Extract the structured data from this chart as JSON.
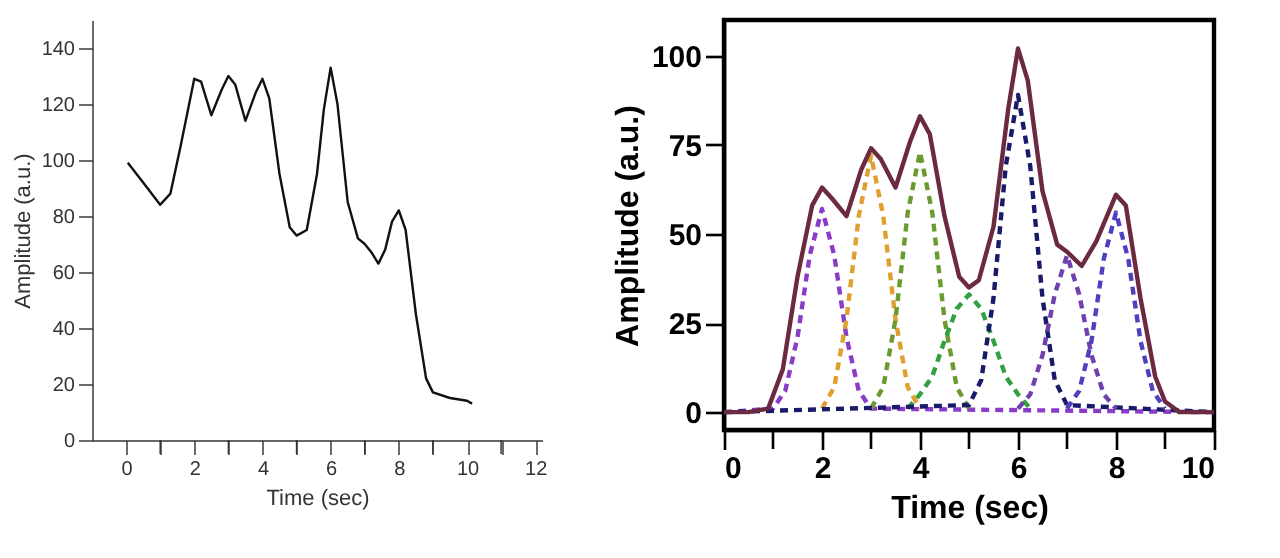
{
  "chart_data": [
    {
      "type": "line",
      "xlabel": "Time (sec)",
      "ylabel": "Amplitude (a.u.)",
      "xlim": [
        -1,
        12.2
      ],
      "ylim": [
        0,
        150
      ],
      "xticks": [
        0,
        {
          "value": 1,
          "label": null
        },
        2,
        {
          "value": 3,
          "label": null
        },
        4,
        {
          "value": 5,
          "label": null
        },
        6,
        {
          "value": 7,
          "label": null
        },
        8,
        {
          "value": 9,
          "label": null
        },
        10,
        {
          "value": 11,
          "label": null
        },
        12
      ],
      "yticks": [
        0,
        20,
        40,
        60,
        80,
        100,
        120,
        140
      ],
      "grid": false,
      "marker": "none",
      "series": [
        {
          "color": "#111111",
          "line_style": "solid",
          "x": [
            0.05,
            0.5,
            1.0,
            1.3,
            1.6,
            2.0,
            2.2,
            2.5,
            2.8,
            3.0,
            3.2,
            3.5,
            3.8,
            4.0,
            4.2,
            4.5,
            4.8,
            5.0,
            5.3,
            5.6,
            5.8,
            6.0,
            6.2,
            6.5,
            6.8,
            7.0,
            7.2,
            7.4,
            7.6,
            7.8,
            8.0,
            8.2,
            8.5,
            8.8,
            9.0,
            9.5,
            10.0,
            10.15
          ],
          "values": [
            99,
            92,
            84,
            88,
            105,
            129,
            128,
            116,
            125,
            130,
            127,
            114,
            124,
            129,
            122,
            95,
            76,
            73,
            75,
            95,
            118,
            133,
            120,
            85,
            72,
            70,
            67,
            63,
            68,
            78,
            82,
            75,
            45,
            22,
            17,
            15,
            14,
            13
          ]
        }
      ]
    },
    {
      "type": "line",
      "xlabel": "Time (sec)",
      "ylabel": "Amplitude (a.u.)",
      "xlim": [
        0,
        10
      ],
      "ylim": [
        -5,
        110
      ],
      "xticks": [
        0,
        {
          "value": 1,
          "label": null
        },
        2,
        {
          "value": 3,
          "label": null
        },
        4,
        {
          "value": 5,
          "label": null
        },
        6,
        {
          "value": 7,
          "label": null
        },
        8,
        {
          "value": 9,
          "label": null
        },
        10
      ],
      "yticks": [
        0,
        25,
        50,
        75,
        100
      ],
      "grid": false,
      "marker": "none",
      "series": [
        {
          "color": "#8a3cc8",
          "line_style": "dashed",
          "x": [
            0,
            1,
            1.25,
            1.5,
            1.75,
            2,
            2.25,
            2.5,
            2.75,
            3,
            10
          ],
          "values": [
            0,
            1,
            6,
            21,
            44,
            57,
            44,
            21,
            6,
            1,
            0
          ]
        },
        {
          "color": "#e0a030",
          "line_style": "dashed",
          "x": [
            2,
            2.25,
            2.5,
            2.75,
            3,
            3.25,
            3.5,
            3.75,
            4
          ],
          "values": [
            1,
            7,
            26,
            55,
            72,
            55,
            26,
            7,
            1
          ]
        },
        {
          "color": "#6a9a30",
          "line_style": "dashed",
          "x": [
            3,
            3.25,
            3.5,
            3.75,
            4,
            4.25,
            4.5,
            4.75,
            5
          ],
          "values": [
            1,
            7,
            26,
            56,
            73,
            56,
            26,
            7,
            1
          ]
        },
        {
          "color": "#30a040",
          "line_style": "dashed",
          "x": [
            3.75,
            4,
            4.25,
            4.5,
            4.75,
            5,
            5.25,
            5.5,
            5.75,
            6,
            6.25
          ],
          "values": [
            1,
            5,
            10,
            20,
            29,
            33,
            29,
            20,
            10,
            5,
            1
          ]
        },
        {
          "color": "#1a1a6a",
          "line_style": "dashed",
          "x": [
            0,
            5,
            5.25,
            5.5,
            5.75,
            6,
            6.25,
            6.5,
            6.75,
            7,
            10
          ],
          "values": [
            0,
            2,
            9,
            32,
            69,
            89,
            69,
            32,
            9,
            2,
            0
          ]
        },
        {
          "color": "#7040b0",
          "line_style": "dashed",
          "x": [
            6,
            6.25,
            6.5,
            6.75,
            7,
            7.25,
            7.5,
            7.75,
            8
          ],
          "values": [
            1,
            5,
            16,
            33,
            44,
            33,
            16,
            5,
            1
          ]
        },
        {
          "color": "#5040c0",
          "line_style": "dashed",
          "x": [
            7,
            7.25,
            7.5,
            7.75,
            8,
            8.25,
            8.5,
            8.75,
            9
          ],
          "values": [
            1,
            6,
            20,
            43,
            56,
            43,
            20,
            6,
            1
          ]
        },
        {
          "color": "#6b2a40",
          "line_style": "solid",
          "x": [
            0,
            0.5,
            0.9,
            1.2,
            1.5,
            1.8,
            2.0,
            2.2,
            2.5,
            2.8,
            3.0,
            3.2,
            3.5,
            3.8,
            4.0,
            4.2,
            4.5,
            4.8,
            5.0,
            5.2,
            5.5,
            5.8,
            6.0,
            6.2,
            6.5,
            6.8,
            7.0,
            7.3,
            7.6,
            8.0,
            8.2,
            8.5,
            8.8,
            9.0,
            9.3,
            10
          ],
          "values": [
            0,
            0,
            1,
            12,
            38,
            58,
            63,
            60,
            55,
            68,
            74,
            71,
            63,
            76,
            83,
            78,
            55,
            38,
            35,
            37,
            52,
            85,
            102,
            93,
            62,
            47,
            45,
            41,
            48,
            61,
            58,
            32,
            10,
            3,
            0,
            0
          ]
        }
      ]
    }
  ]
}
